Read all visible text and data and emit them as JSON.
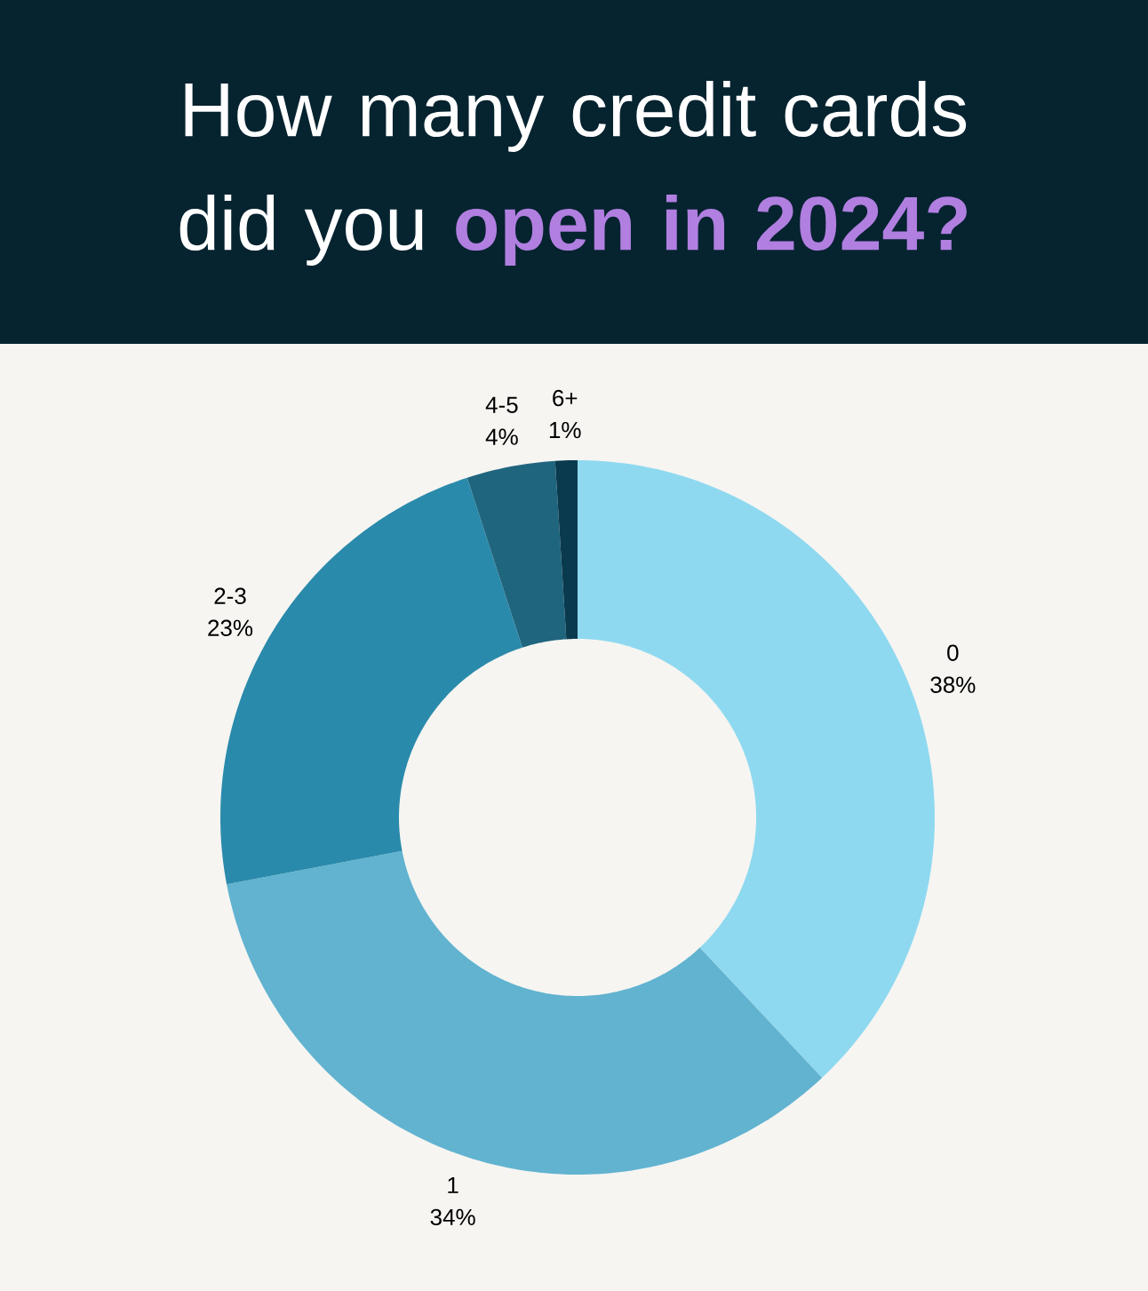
{
  "chart_data": {
    "type": "donut",
    "title": "How many credit cards did you **open in 2024?**",
    "categories": [
      "0",
      "1",
      "2-3",
      "4-5",
      "6+"
    ],
    "values": [
      38,
      34,
      23,
      4,
      1
    ],
    "value_labels": [
      "38%",
      "34%",
      "23%",
      "4%",
      "1%"
    ],
    "colors": [
      "#8fd9f0",
      "#61b3d0",
      "#2a8aab",
      "#20657e",
      "#0a3a4e"
    ]
  }
}
